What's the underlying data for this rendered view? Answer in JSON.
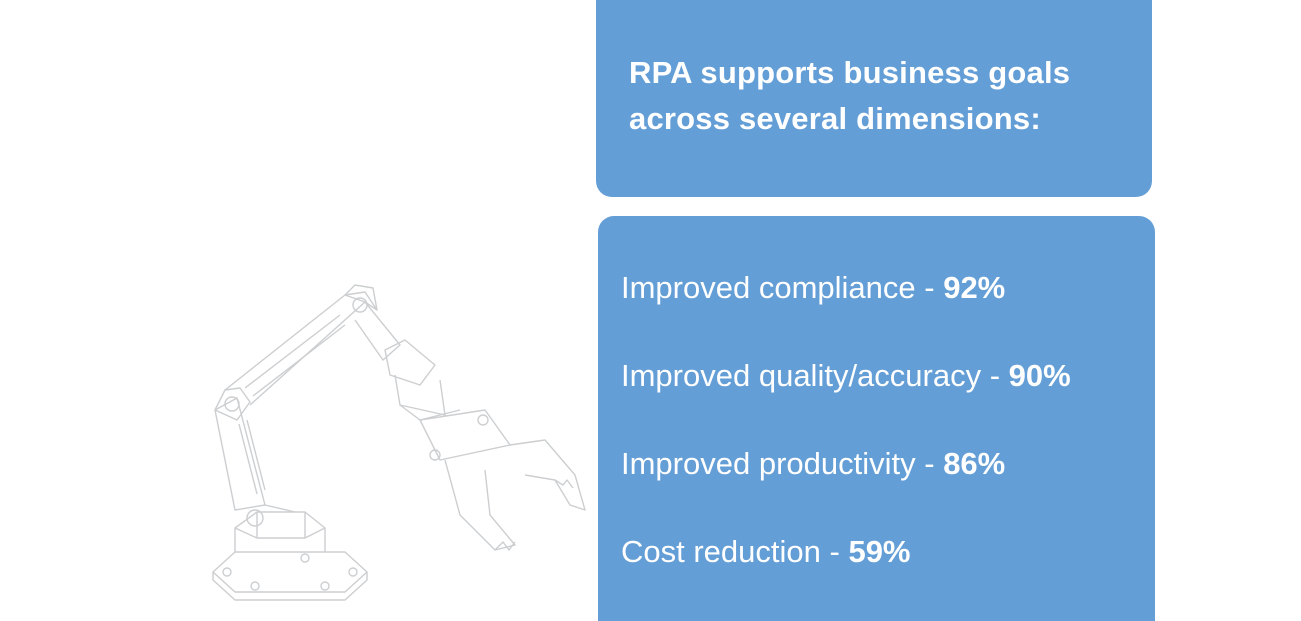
{
  "colors": {
    "card_background": "#649ed6",
    "text": "#ffffff",
    "illustration_stroke": "#8f9399"
  },
  "illustration": {
    "icon": "robotic-arm-icon"
  },
  "header": {
    "title": "RPA supports business goals across several dimensions:"
  },
  "stats": [
    {
      "label": "Improved compliance",
      "separator": " - ",
      "value": "92%"
    },
    {
      "label": "Improved quality/accuracy",
      "separator": " - ",
      "value": "90%"
    },
    {
      "label": "Improved productivity",
      "separator": " - ",
      "value": "86%"
    },
    {
      "label": "Cost reduction",
      "separator": " - ",
      "value": "59%"
    }
  ]
}
